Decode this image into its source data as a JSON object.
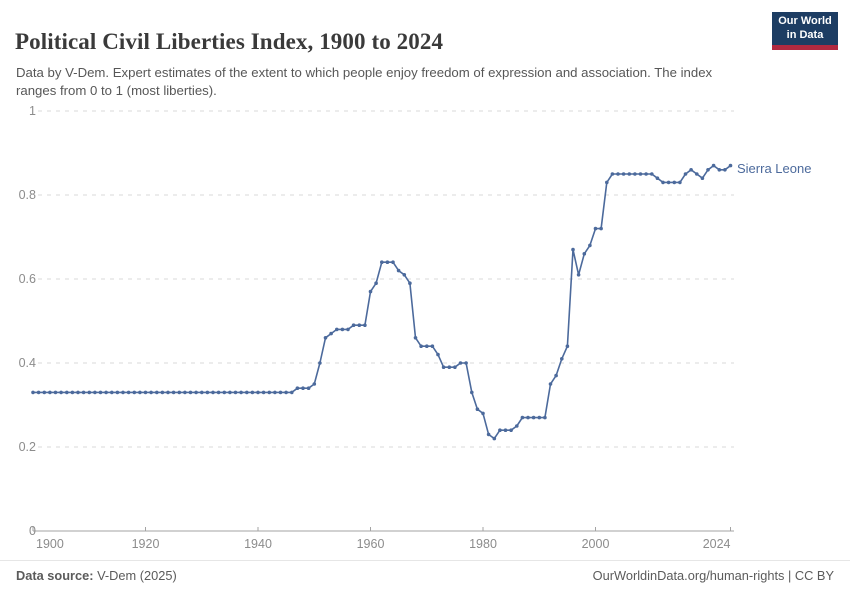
{
  "header": {
    "title": "Political Civil Liberties Index, 1900 to 2024",
    "subtitle": "Data by V-Dem. Expert estimates of the extent to which people enjoy freedom of expression and association. The index ranges from 0 to 1 (most liberties).",
    "logo": {
      "line1": "Our World",
      "line2": "in Data"
    }
  },
  "footer": {
    "source_label": "Data source:",
    "source_value": " V-Dem (2025)",
    "right_text": "OurWorldinData.org/human-rights | CC BY"
  },
  "colors": {
    "series_blue": "#4C6A9C",
    "grid": "#d9d9d9",
    "axis": "#a3a3a3",
    "tick_text": "#8c8c8c",
    "logo_navy": "#1d3d63",
    "logo_red": "#b12940"
  },
  "chart_data": {
    "type": "line",
    "title": "Political Civil Liberties Index, 1900 to 2024",
    "xlabel": "",
    "ylabel": "",
    "xlim": [
      1900,
      2024
    ],
    "ylim": [
      0,
      1
    ],
    "grid": "horizontal-dashed",
    "legend_position": "end-of-line",
    "x_ticks": [
      1900,
      1920,
      1940,
      1960,
      1980,
      2000,
      2024
    ],
    "y_ticks": [
      0,
      0.2,
      0.4,
      0.6,
      0.8,
      1
    ],
    "series": [
      {
        "name": "Sierra Leone",
        "color": "#4C6A9C",
        "start_year": 1900,
        "end_year": 2024,
        "values": [
          0.33,
          0.33,
          0.33,
          0.33,
          0.33,
          0.33,
          0.33,
          0.33,
          0.33,
          0.33,
          0.33,
          0.33,
          0.33,
          0.33,
          0.33,
          0.33,
          0.33,
          0.33,
          0.33,
          0.33,
          0.33,
          0.33,
          0.33,
          0.33,
          0.33,
          0.33,
          0.33,
          0.33,
          0.33,
          0.33,
          0.33,
          0.33,
          0.33,
          0.33,
          0.33,
          0.33,
          0.33,
          0.33,
          0.33,
          0.33,
          0.33,
          0.33,
          0.33,
          0.33,
          0.33,
          0.33,
          0.33,
          0.34,
          0.34,
          0.34,
          0.35,
          0.4,
          0.46,
          0.47,
          0.48,
          0.48,
          0.48,
          0.49,
          0.49,
          0.49,
          0.57,
          0.59,
          0.64,
          0.64,
          0.64,
          0.62,
          0.61,
          0.59,
          0.46,
          0.44,
          0.44,
          0.44,
          0.42,
          0.39,
          0.39,
          0.39,
          0.4,
          0.4,
          0.33,
          0.29,
          0.28,
          0.23,
          0.22,
          0.24,
          0.24,
          0.24,
          0.25,
          0.27,
          0.27,
          0.27,
          0.27,
          0.27,
          0.35,
          0.37,
          0.41,
          0.44,
          0.67,
          0.61,
          0.66,
          0.68,
          0.72,
          0.72,
          0.83,
          0.85,
          0.85,
          0.85,
          0.85,
          0.85,
          0.85,
          0.85,
          0.85,
          0.84,
          0.83,
          0.83,
          0.83,
          0.83,
          0.85,
          0.86,
          0.85,
          0.84,
          0.86,
          0.87,
          0.86,
          0.86,
          0.87
        ]
      }
    ]
  }
}
